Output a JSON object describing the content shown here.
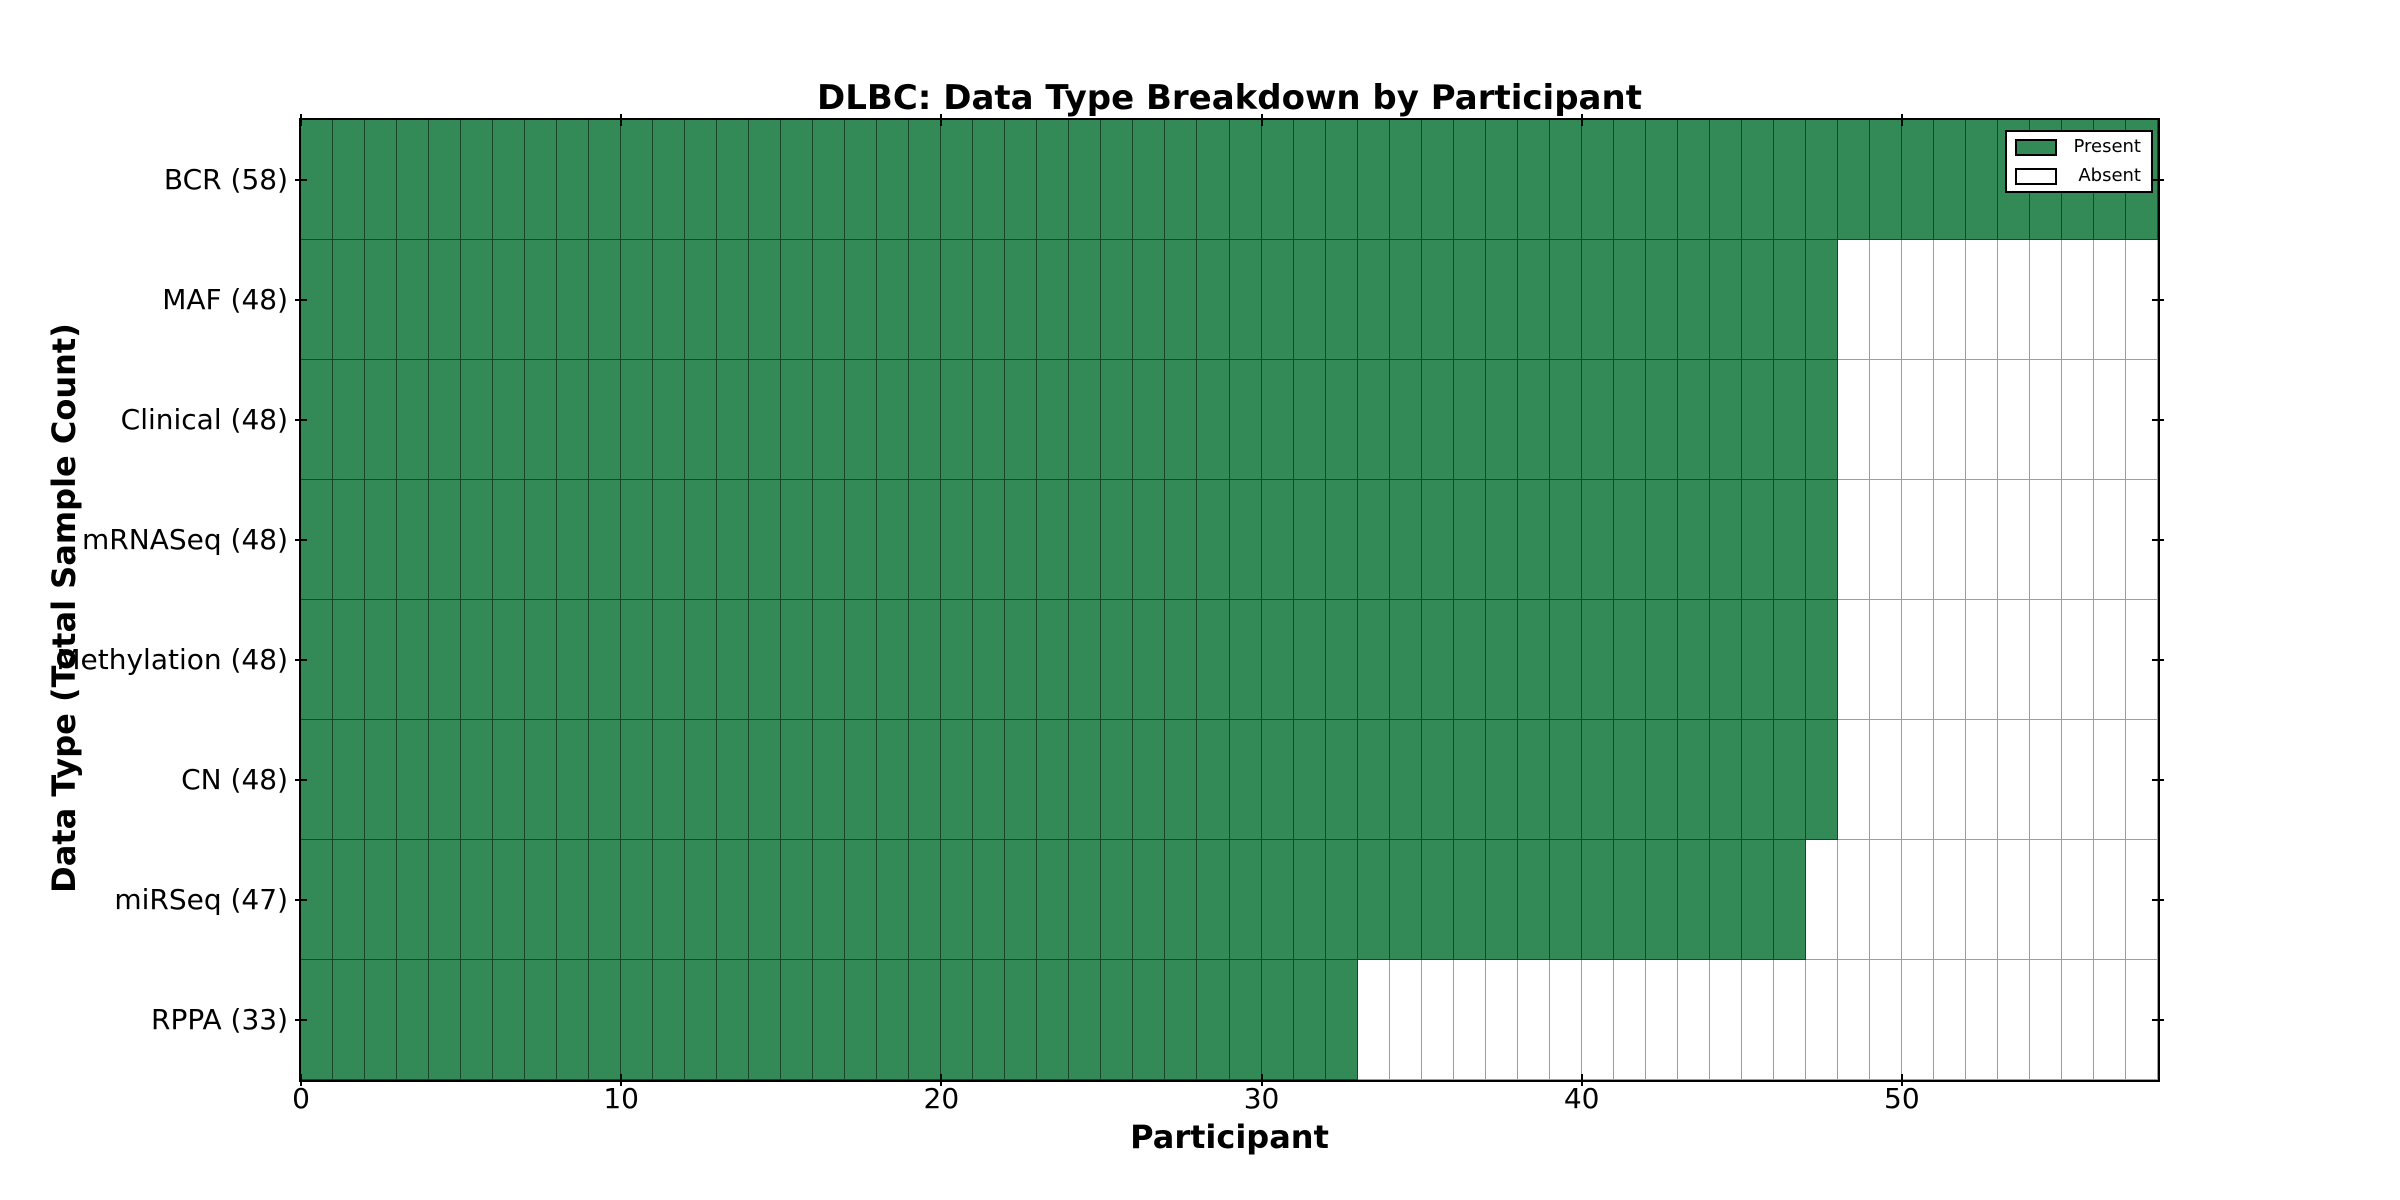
{
  "title": "DLBC: Data Type Breakdown by Participant",
  "axes": {
    "x_label": "Participant",
    "y_label": "Data Type (Total Sample Count)"
  },
  "legend": {
    "items": [
      {
        "label": "Present",
        "swatch_color": "#338A57"
      },
      {
        "label": "Absent",
        "swatch_color": "#FFFFFF"
      }
    ]
  },
  "colors": {
    "present": "#338A57",
    "absent": "#FFFFFF",
    "cell_edge": "rgba(0,0,0,0.5)",
    "axis": "#000000"
  },
  "chart_data": {
    "type": "heatmap",
    "title": "DLBC: Data Type Breakdown by Participant",
    "xlabel": "Participant",
    "ylabel": "Data Type (Total Sample Count)",
    "x_range": [
      0,
      58
    ],
    "x_ticks": [
      0,
      10,
      20,
      30,
      40,
      50
    ],
    "n_participants": 58,
    "value_meaning": "1 = data type present for participant, 0 = absent; green = Present, white = Absent",
    "rows": [
      {
        "label": "BCR (58)",
        "data_type": "BCR",
        "total_sample_count": 58,
        "present_count": 58
      },
      {
        "label": "MAF (48)",
        "data_type": "MAF",
        "total_sample_count": 48,
        "present_count": 48
      },
      {
        "label": "Clinical (48)",
        "data_type": "Clinical",
        "total_sample_count": 48,
        "present_count": 48
      },
      {
        "label": "mRNASeq (48)",
        "data_type": "mRNASeq",
        "total_sample_count": 48,
        "present_count": 48
      },
      {
        "label": "Methylation (48)",
        "data_type": "Methylation",
        "total_sample_count": 48,
        "present_count": 48
      },
      {
        "label": "CN (48)",
        "data_type": "CN",
        "total_sample_count": 48,
        "present_count": 48
      },
      {
        "label": "miRSeq (47)",
        "data_type": "miRSeq",
        "total_sample_count": 47,
        "present_count": 47
      },
      {
        "label": "RPPA (33)",
        "data_type": "RPPA",
        "total_sample_count": 33,
        "present_count": 33
      }
    ],
    "legend_entries": [
      "Present",
      "Absent"
    ],
    "legend_position": "upper right",
    "grid": "cell edges only"
  }
}
